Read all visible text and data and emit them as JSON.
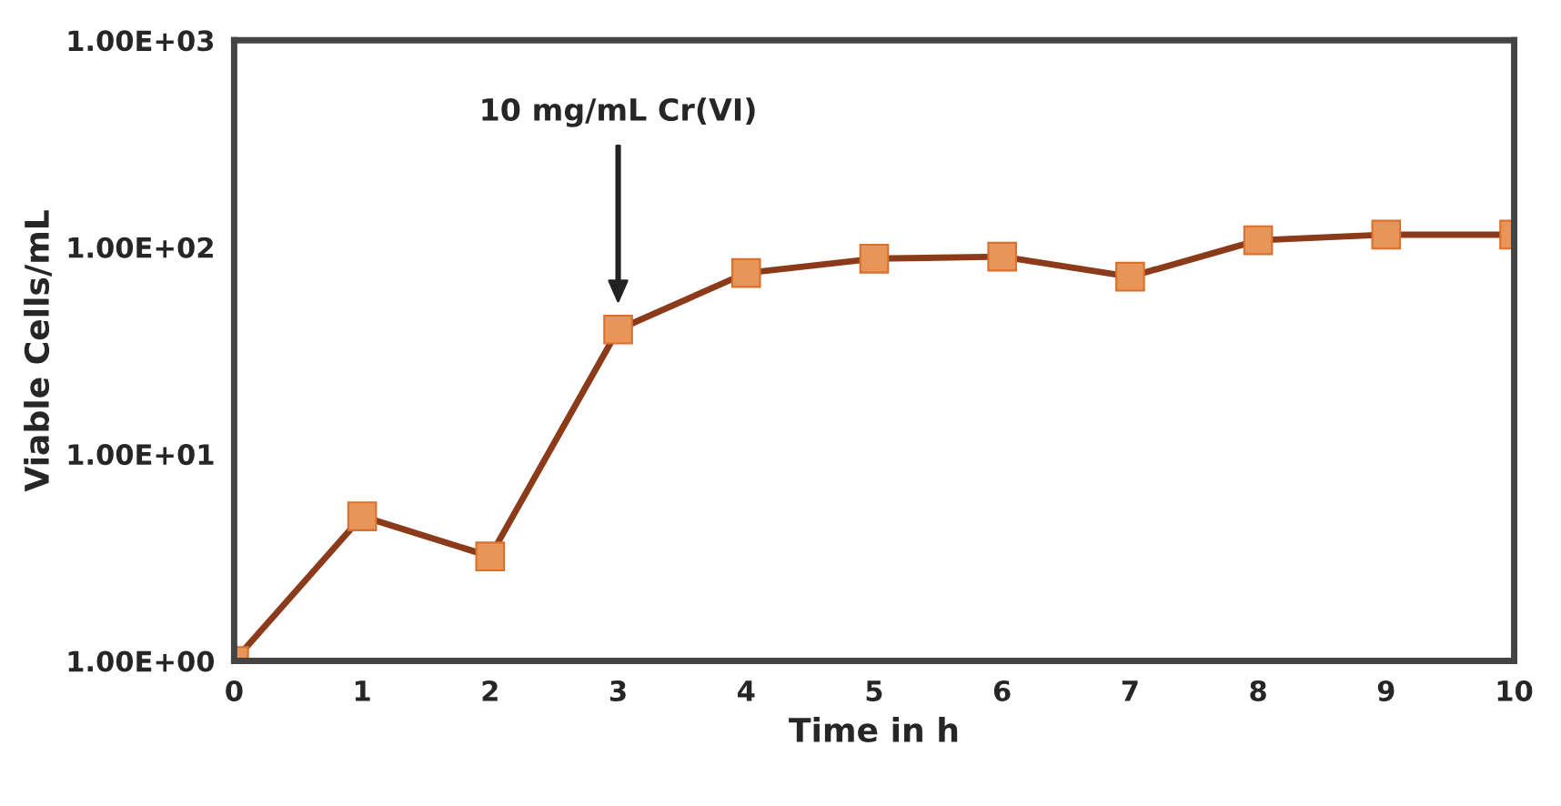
{
  "chart_data": {
    "type": "line",
    "xlabel": "Time in h",
    "ylabel": "Viable Cells/mL",
    "x": [
      0,
      1,
      2,
      3,
      4,
      5,
      6,
      7,
      8,
      9,
      10
    ],
    "series": [
      {
        "color": "#8b3a1a",
        "values": [
          1,
          5,
          3.2,
          40,
          75,
          88,
          90,
          72,
          108,
          115,
          115
        ]
      }
    ],
    "log": true,
    "marker": "square",
    "line_style": "solid",
    "grid": false,
    "legend": false,
    "xlim": [
      0,
      10
    ],
    "xticks": [
      0,
      1,
      2,
      3,
      4,
      5,
      6,
      7,
      8,
      9,
      10
    ],
    "ylim": [
      1,
      1000
    ],
    "yticks": [
      {
        "value": 1,
        "label": "1.00E+00"
      },
      {
        "value": 10,
        "label": "1.00E+01"
      },
      {
        "value": 100,
        "label": "1.00E+02"
      },
      {
        "value": 1000,
        "label": "1.00E+03"
      }
    ],
    "annotations": [
      "10 mg/mL Cr(VI)"
    ]
  }
}
